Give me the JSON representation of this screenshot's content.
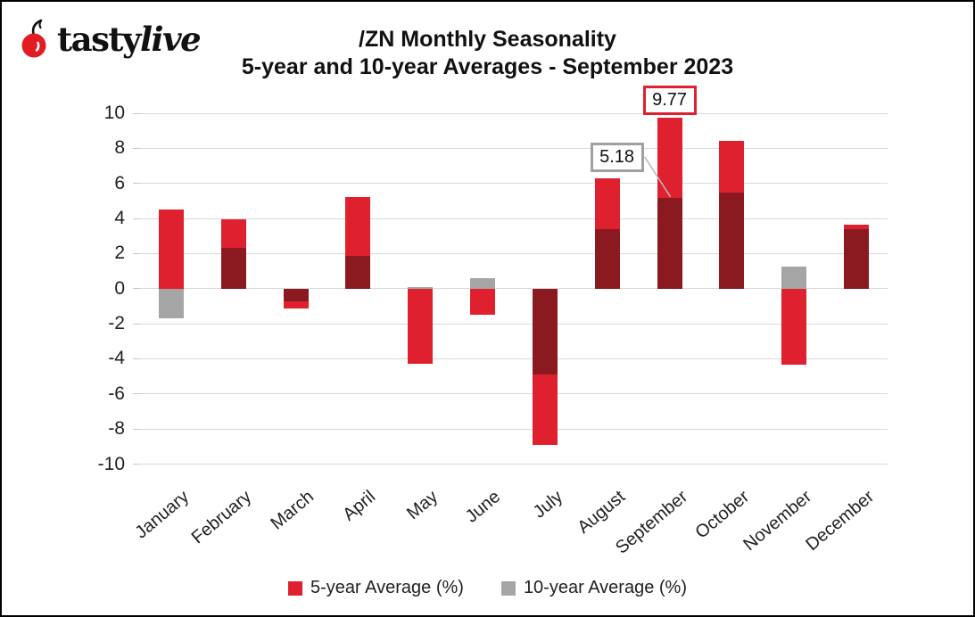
{
  "logo": {
    "brand_bold": "tasty",
    "brand_italic": "live",
    "cherry_color": "#e31b23"
  },
  "title": {
    "line1": "/ZN Monthly Seasonality",
    "line2": "5-year and 10-year Averages - September 2023"
  },
  "chart_data": {
    "type": "bar",
    "mode": "overlapped-bars-shared-axis",
    "categories": [
      "January",
      "February",
      "March",
      "April",
      "May",
      "June",
      "July",
      "August",
      "September",
      "October",
      "November",
      "December"
    ],
    "series": [
      {
        "name": "5-year Average (%)",
        "color": "#df202e",
        "values": [
          4.5,
          3.95,
          -1.15,
          5.2,
          -4.3,
          -1.5,
          -8.9,
          6.3,
          9.77,
          8.4,
          -4.35,
          3.65
        ]
      },
      {
        "name": "10-year Average (%)",
        "color": "#a5a5a5",
        "values": [
          -1.7,
          2.35,
          -0.7,
          1.85,
          0.1,
          0.6,
          -4.9,
          3.4,
          5.18,
          5.5,
          1.25,
          3.4
        ]
      }
    ],
    "overlap_color": "#8b1a20",
    "ylim": [
      -10,
      10
    ],
    "ytick_step": 2,
    "yticks": [
      10,
      8,
      6,
      4,
      2,
      0,
      -2,
      -4,
      -6,
      -8,
      -10
    ],
    "grid": true,
    "gridline_color": "#d9d9d9",
    "legend_position": "bottom",
    "annotations": [
      {
        "label": "9.77",
        "category": "September",
        "series": 0,
        "value": 9.77,
        "placement": "above",
        "border_color": "#df202e",
        "leader": false
      },
      {
        "label": "5.18",
        "category": "September",
        "series": 1,
        "value": 5.18,
        "placement": "upper-left",
        "border_color": "#a0a0a0",
        "leader": true,
        "leader_color": "#b9b9b9"
      }
    ]
  }
}
